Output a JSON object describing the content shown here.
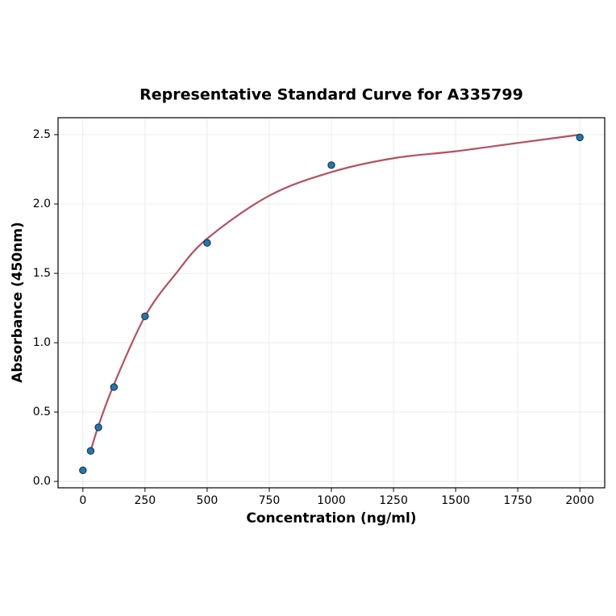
{
  "chart_data": {
    "type": "scatter",
    "title": "Representative Standard Curve for A335799",
    "xlabel": "Concentration (ng/ml)",
    "ylabel": "Absorbance (450nm)",
    "xlim": [
      -100,
      2100
    ],
    "ylim": [
      -0.046,
      2.622
    ],
    "xticks": [
      0,
      250,
      500,
      750,
      1000,
      1250,
      1500,
      1750,
      2000
    ],
    "yticks": [
      {
        "value": 0,
        "label": "0.0"
      },
      0.5,
      {
        "value": 1,
        "label": "1.0"
      },
      1.5,
      {
        "value": 2,
        "label": "2.0"
      },
      2.5
    ],
    "grid": true,
    "series": [
      {
        "type": "line",
        "color": "#b5505f",
        "x": [
          31.25,
          62.5,
          125,
          250,
          375,
          500,
          750,
          1000,
          1250,
          1500,
          1750,
          2000
        ],
        "values": [
          0.22,
          0.4,
          0.7,
          1.19,
          1.5,
          1.75,
          2.06,
          2.23,
          2.33,
          2.38,
          2.44,
          2.5
        ]
      },
      {
        "type": "scatter",
        "color": "#1f77b4",
        "x": [
          0,
          31.25,
          62.5,
          125,
          250,
          500,
          1000,
          2000
        ],
        "values": [
          0.08,
          0.22,
          0.39,
          0.68,
          1.19,
          1.72,
          2.28,
          2.48
        ]
      }
    ]
  }
}
